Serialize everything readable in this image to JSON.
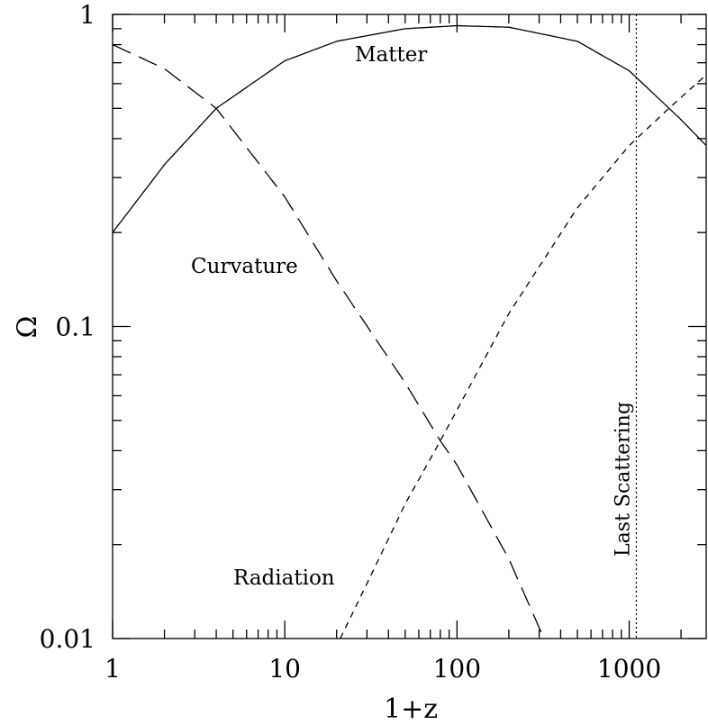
{
  "chart_data": {
    "type": "line",
    "xlabel": "1+z",
    "ylabel": "Ω",
    "xscale": "log",
    "yscale": "log",
    "xlim": [
      1,
      2800
    ],
    "ylim": [
      0.01,
      1
    ],
    "xticks": [
      {
        "value": 1,
        "label": "1"
      },
      {
        "value": 10,
        "label": "10"
      },
      {
        "value": 100,
        "label": "100"
      },
      {
        "value": 1000,
        "label": "1000"
      }
    ],
    "yticks": [
      {
        "value": 0.01,
        "label": "0.01"
      },
      {
        "value": 0.1,
        "label": "0.1"
      },
      {
        "value": 1,
        "label": "1"
      }
    ],
    "series": [
      {
        "name": "Matter",
        "style": "solid",
        "x": [
          1,
          2,
          4,
          10,
          20,
          50,
          100,
          200,
          500,
          1000,
          2000,
          2800
        ],
        "y": [
          0.2,
          0.33,
          0.5,
          0.71,
          0.82,
          0.9,
          0.92,
          0.91,
          0.82,
          0.66,
          0.46,
          0.38
        ]
      },
      {
        "name": "Curvature",
        "style": "long-dash",
        "x": [
          1,
          2,
          4,
          10,
          20,
          50,
          80,
          100,
          200,
          320
        ],
        "y": [
          0.8,
          0.67,
          0.5,
          0.26,
          0.14,
          0.066,
          0.043,
          0.036,
          0.018,
          0.01
        ]
      },
      {
        "name": "Radiation",
        "style": "short-dash",
        "x": [
          21,
          30,
          50,
          80,
          100,
          200,
          500,
          1000,
          1700,
          2800
        ],
        "y": [
          0.01,
          0.015,
          0.027,
          0.043,
          0.054,
          0.11,
          0.24,
          0.38,
          0.5,
          0.64
        ]
      }
    ],
    "vline": {
      "x": 1100,
      "label": "Last Scattering",
      "style": "dotted"
    },
    "annotations": {
      "matter": "Matter",
      "curvature": "Curvature",
      "radiation": "Radiation"
    }
  }
}
